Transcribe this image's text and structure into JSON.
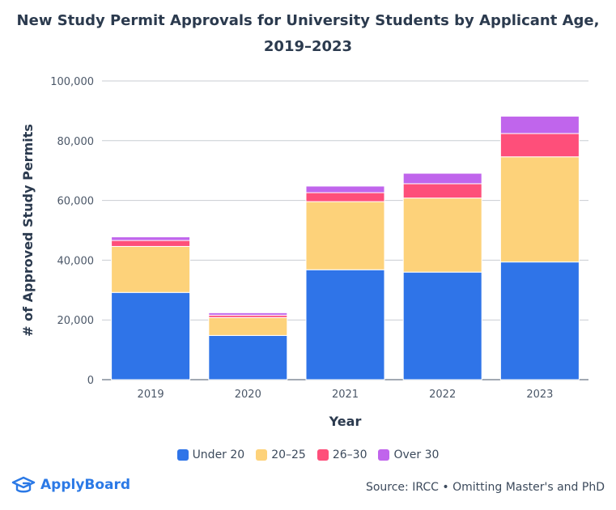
{
  "title_line1": "New Study Permit Approvals for University Students by Applicant Age,",
  "title_line2": "2019–2023",
  "legend": [
    "Under 20",
    "20–25",
    "26–30",
    "Over 30"
  ],
  "brand": {
    "name": "ApplyBoard",
    "icon": "graduation-cap-logo",
    "color": "#2b79e6"
  },
  "source": "Source: IRCC • Omitting Master's and PhD",
  "colors": {
    "Under 20": "#2f74e8",
    "20–25": "#fdd27a",
    "26–30": "#fe4f7a",
    "Over 30": "#c065ec"
  },
  "chart_data": {
    "type": "bar",
    "stacked": true,
    "categories": [
      "2019",
      "2020",
      "2021",
      "2022",
      "2023"
    ],
    "series": [
      {
        "name": "Under 20",
        "values": [
          29200,
          14800,
          36800,
          36000,
          39400
        ]
      },
      {
        "name": "20–25",
        "values": [
          15400,
          6000,
          22800,
          24800,
          35200
        ]
      },
      {
        "name": "26–30",
        "values": [
          2000,
          800,
          3000,
          4800,
          7800
        ]
      },
      {
        "name": "Over 30",
        "values": [
          1200,
          800,
          2200,
          3500,
          5800
        ]
      }
    ],
    "xlabel": "Year",
    "ylabel": "# of Approved Study Permits",
    "ylim": [
      0,
      100000
    ],
    "yticks": [
      "0",
      "20,000",
      "40,000",
      "60,000",
      "80,000",
      "100,000"
    ],
    "yticks_values": [
      0,
      20000,
      40000,
      60000,
      80000,
      100000
    ],
    "grid": true,
    "legend_position": "bottom"
  }
}
